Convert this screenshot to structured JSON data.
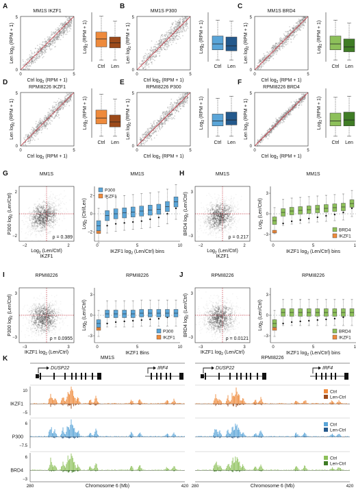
{
  "colors": {
    "ikzf1_ctrl": "#ee8a3c",
    "ikzf1_len": "#9c4a1a",
    "p300_ctrl": "#5aa5d8",
    "p300_len": "#24598c",
    "brd4_ctrl": "#8dc05a",
    "brd4_len": "#3f7c25",
    "scatter": "#808080",
    "diagonal": "#c8333f"
  },
  "scatter_panels": [
    {
      "letter": "A",
      "title": "MM1S IKZF1",
      "factor": "ikzf1"
    },
    {
      "letter": "B",
      "title": "MM1S P300",
      "factor": "p300"
    },
    {
      "letter": "C",
      "title": "MM1S BRD4",
      "factor": "brd4"
    },
    {
      "letter": "D",
      "title": "RPMI8226 IKZF1",
      "factor": "ikzf1"
    },
    {
      "letter": "E",
      "title": "RPMI8226 P300",
      "factor": "p300"
    },
    {
      "letter": "F",
      "title": "RPMI8226 BRD4",
      "factor": "brd4"
    }
  ],
  "scatter_axes": {
    "ylabel_prefix": "Len log",
    "ylabel_sub": "2",
    "ylabel_suffix": " (RPM + 1)",
    "xlabel_prefix": "Ctrl log",
    "xlabel_sub": "2",
    "xlabel_suffix": " (RPM + 1)",
    "ticks": [
      "0",
      "5"
    ]
  },
  "box_axes": {
    "ylabel_prefix": "Log",
    "ylabel_sub": "2",
    "ylabel_suffix": " (RPM + 1)",
    "categories": [
      "Ctrl",
      "Len"
    ]
  },
  "corr_panels": [
    {
      "letter": "G",
      "title": "MM1S",
      "factor": "p300",
      "ylabel": "P300 log",
      "xlabel": "Log",
      "xname": "IKZF1",
      "rho": "ρ = 0.389",
      "ticks_x": [
        "−2",
        "2"
      ],
      "ticks_y": [
        "2",
        "−2"
      ]
    },
    {
      "letter": "H",
      "title": "MM1S",
      "factor": "brd4",
      "ylabel": "BRD4 log",
      "xlabel": "Log",
      "xname": "IKZF1",
      "rho": "ρ = 0.217",
      "ticks_x": [
        "−2",
        "2"
      ],
      "ticks_y": [
        "3",
        "−3"
      ]
    },
    {
      "letter": "I",
      "title": "RPMI8226",
      "factor": "p300",
      "ylabel": "P300 log",
      "xlabel": "IKZF1 log",
      "xname": "",
      "rho": "ρ = 0.0955",
      "ticks_x": [
        "−3",
        "3"
      ],
      "ticks_y": [
        "3",
        "−3"
      ]
    },
    {
      "letter": "J",
      "title": "RPMI8226",
      "factor": "brd4",
      "ylabel": "BRD4 log",
      "xlabel": "IKZF1 log",
      "xname": "",
      "rho": "ρ = 0.0121",
      "ticks_x": [
        "−3",
        "3"
      ],
      "ticks_y": [
        "3",
        "−3"
      ]
    }
  ],
  "bin_panels": [
    {
      "title": "MM1S",
      "factor": "p300",
      "ylabel": "Log",
      "ysuffix": " (Ctrl/Len)",
      "xlabel": "IKZF1 log",
      "xsuffix": " (Len/Ctrl) bins",
      "legend": [
        "P300",
        "IKZF1"
      ],
      "legend_pos": "top-left",
      "yticks": [
        "2",
        "0",
        "−2"
      ],
      "xticks": [
        "0",
        "5",
        "10"
      ]
    },
    {
      "title": "MM1S",
      "factor": "brd4",
      "ylabel": "Log",
      "ysuffix": " (Len/Ctrl)",
      "xlabel": "IKZF1 log",
      "xsuffix": " (Len/Ctrl) bins",
      "legend": [
        "BRD4",
        "IKZF1"
      ],
      "legend_pos": "bottom-right",
      "yticks": [
        "3",
        "0",
        "−3"
      ],
      "xticks": [
        "0",
        "5",
        "10"
      ]
    },
    {
      "title": "RPMI8226",
      "factor": "p300",
      "ylabel": "Log",
      "ysuffix": " (Len/Ctrl)",
      "xlabel": "IKZF1 Bins",
      "xsuffix": "",
      "legend": [
        "P300",
        "IKZF1"
      ],
      "legend_pos": "bottom-right",
      "yticks": [
        "3",
        "0",
        "−3"
      ],
      "xticks": [
        "0",
        "5",
        "10"
      ]
    },
    {
      "title": "RPMI8226",
      "factor": "brd4",
      "ylabel": "Log",
      "ysuffix": " (Len/Ctrl)",
      "xlabel": "IKZF1 log",
      "xsuffix": " (Len/Ctrl) bins",
      "legend": [
        "BRD4",
        "IKZF1"
      ],
      "legend_pos": "bottom-right",
      "yticks": [
        "3",
        "0",
        "−3"
      ],
      "xticks": [
        "0",
        "5",
        "10"
      ]
    }
  ],
  "panel_k": {
    "letter": "K",
    "cells": [
      "MM1S",
      "RPMI8226"
    ],
    "genes": [
      "DUSP22",
      "IRF4"
    ],
    "tracks": [
      {
        "name": "IKZF1",
        "factor": "ikzf1",
        "top": "10",
        "bottom": "−5",
        "legend": [
          "Ctrl",
          "Len-Ctrl"
        ]
      },
      {
        "name": "P300",
        "factor": "p300",
        "top": "6",
        "bottom": "−7.5",
        "legend": [
          "Ctrl",
          "Len-Ctrl"
        ]
      },
      {
        "name": "BRD4",
        "factor": "brd4",
        "top": "6",
        "bottom": "−3",
        "legend": [
          "Ctrl",
          "Len-Ctrl"
        ]
      }
    ],
    "xaxis": {
      "start": "280",
      "end": "420",
      "label": "Chromosome 6 (Mb)"
    }
  },
  "chart_data": [
    {
      "type": "scatter",
      "title": "MM1S IKZF1",
      "xlabel": "Ctrl log2 (RPM + 1)",
      "ylabel": "Len log2 (RPM + 1)",
      "xlim": [
        0,
        5
      ],
      "ylim": [
        0,
        5
      ]
    },
    {
      "type": "box",
      "panel": "A",
      "categories": [
        "Ctrl",
        "Len"
      ],
      "median": [
        2.3,
        1.9
      ],
      "q1": [
        1.5,
        1.4
      ],
      "q3": [
        3.0,
        2.5
      ],
      "ylabel": "Log2 (RPM + 1)"
    },
    {
      "type": "scatter",
      "title": "MM1S P300",
      "xlim": [
        0,
        5
      ],
      "ylim": [
        0,
        5
      ]
    },
    {
      "type": "box",
      "panel": "B",
      "categories": [
        "Ctrl",
        "Len"
      ],
      "median": [
        1.8,
        1.6
      ],
      "q1": [
        1.2,
        1.1
      ],
      "q3": [
        2.6,
        2.5
      ]
    },
    {
      "type": "scatter",
      "title": "MM1S BRD4",
      "xlim": [
        0,
        5
      ],
      "ylim": [
        0,
        5
      ]
    },
    {
      "type": "box",
      "panel": "C",
      "categories": [
        "Ctrl",
        "Len"
      ],
      "median": [
        1.8,
        1.5
      ],
      "q1": [
        1.2,
        1.0
      ],
      "q3": [
        2.6,
        2.3
      ]
    },
    {
      "type": "scatter",
      "title": "RPMI8226 IKZF1",
      "xlim": [
        0,
        5
      ],
      "ylim": [
        0,
        5
      ]
    },
    {
      "type": "box",
      "panel": "D",
      "categories": [
        "Ctrl",
        "Len"
      ],
      "median": [
        2.0,
        1.6
      ],
      "q1": [
        1.4,
        1.1
      ],
      "q3": [
        2.8,
        2.3
      ]
    },
    {
      "type": "scatter",
      "title": "RPMI8226 P300",
      "xlim": [
        0,
        5
      ],
      "ylim": [
        0,
        5
      ]
    },
    {
      "type": "box",
      "panel": "E",
      "categories": [
        "Ctrl",
        "Len"
      ],
      "median": [
        1.7,
        1.8
      ],
      "q1": [
        1.2,
        1.3
      ],
      "q3": [
        2.4,
        2.6
      ]
    },
    {
      "type": "scatter",
      "title": "RPMI8226 BRD4",
      "xlim": [
        0,
        5
      ],
      "ylim": [
        0,
        5
      ]
    },
    {
      "type": "box",
      "panel": "F",
      "categories": [
        "Ctrl",
        "Len"
      ],
      "median": [
        1.7,
        1.8
      ],
      "q1": [
        1.2,
        1.2
      ],
      "q3": [
        2.5,
        2.6
      ]
    },
    {
      "type": "scatter",
      "panel": "G",
      "title": "MM1S",
      "rho": 0.389
    },
    {
      "type": "box",
      "panel": "G-bins",
      "x": [
        1,
        2,
        3,
        4,
        5,
        6,
        7,
        8,
        9,
        10
      ],
      "p300_median": [
        -1.3,
        -0.2,
        0.0,
        0.1,
        0.2,
        0.3,
        0.4,
        0.5,
        0.8,
        1.3
      ],
      "ikzf1_median": [
        -2.0,
        -1.3,
        -1.1,
        -1.0,
        -0.9,
        -0.8,
        -0.6,
        -0.4,
        0.0,
        0.6
      ]
    },
    {
      "type": "scatter",
      "panel": "H",
      "title": "MM1S",
      "rho": 0.217
    },
    {
      "type": "box",
      "panel": "H-bins",
      "x": [
        1,
        2,
        3,
        4,
        5,
        6,
        7,
        8,
        9,
        10
      ],
      "brd4_median": [
        -1.0,
        0.2,
        0.4,
        0.5,
        0.6,
        0.7,
        0.8,
        0.9,
        1.0,
        1.5
      ],
      "ikzf1_median": [
        -2.6,
        -1.4,
        -1.1,
        -0.9,
        -0.7,
        -0.5,
        -0.3,
        -0.1,
        0.2,
        0.8
      ]
    },
    {
      "type": "scatter",
      "panel": "I",
      "title": "RPMI8226",
      "rho": 0.0955
    },
    {
      "type": "box",
      "panel": "I-bins",
      "x": [
        1,
        2,
        3,
        4,
        5,
        6,
        7,
        8,
        9,
        10
      ],
      "p300_median": [
        -1.2,
        0.2,
        0.2,
        0.2,
        0.2,
        0.3,
        0.3,
        0.3,
        0.3,
        0.3
      ],
      "ikzf1_median": [
        -2.0,
        -1.2,
        -1.0,
        -0.9,
        -0.8,
        -0.7,
        -0.6,
        -0.5,
        -0.3,
        0.0
      ]
    },
    {
      "type": "scatter",
      "panel": "J",
      "title": "RPMI8226",
      "rho": 0.0121
    },
    {
      "type": "box",
      "panel": "J-bins",
      "x": [
        1,
        2,
        3,
        4,
        5,
        6,
        7,
        8,
        9,
        10
      ],
      "brd4_median": [
        -1.2,
        0.4,
        0.4,
        0.4,
        0.4,
        0.4,
        0.4,
        0.4,
        0.4,
        0.4
      ],
      "ikzf1_median": [
        -2.0,
        -1.2,
        -1.0,
        -0.9,
        -0.8,
        -0.7,
        -0.6,
        -0.5,
        -0.3,
        0.0
      ]
    }
  ]
}
